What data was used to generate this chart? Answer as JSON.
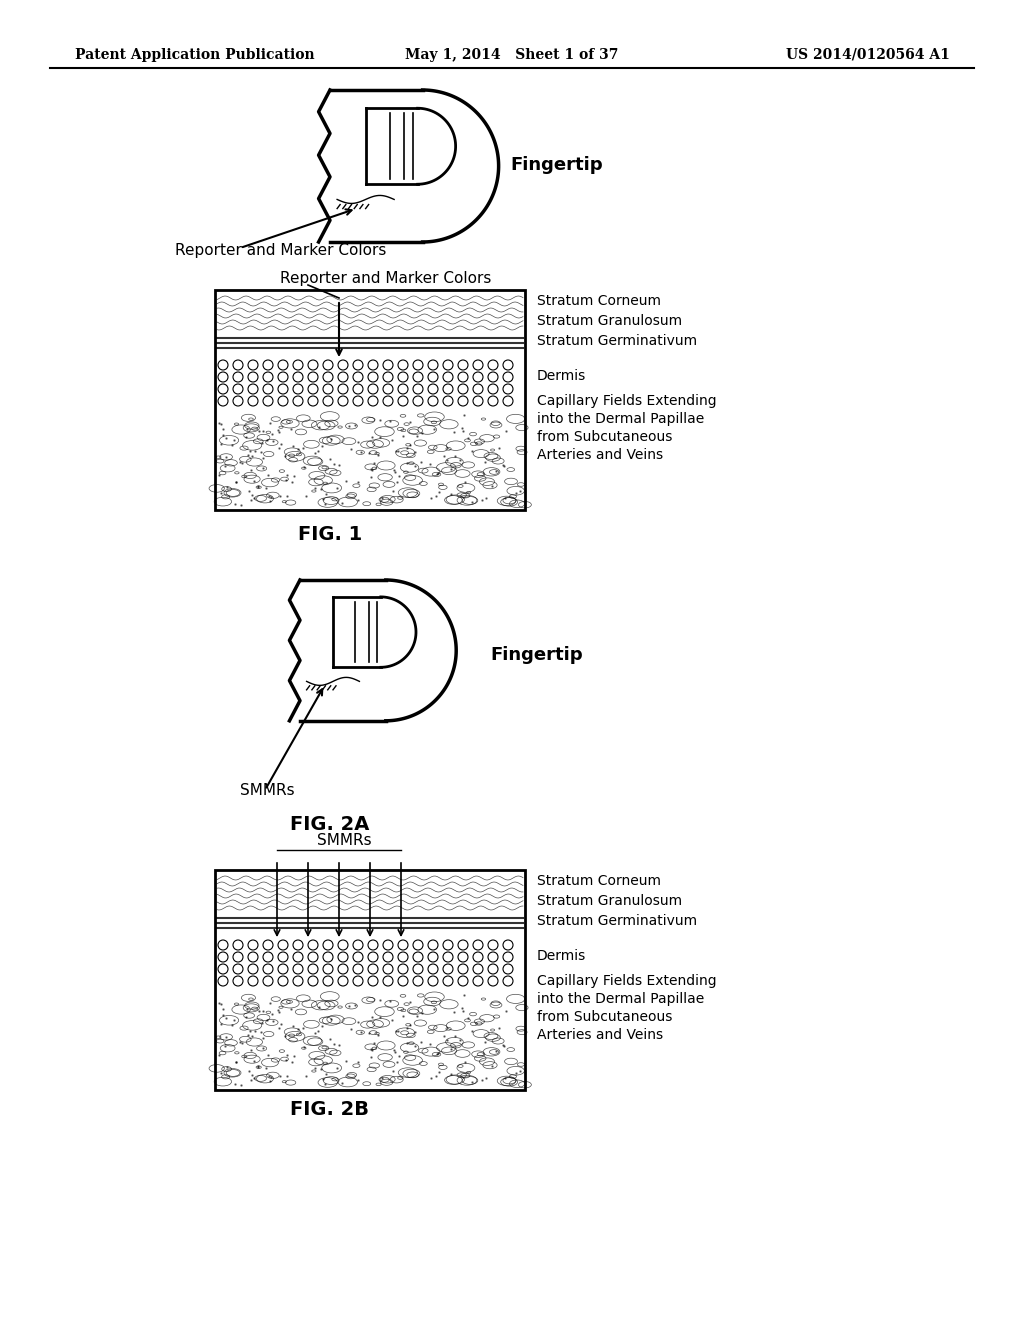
{
  "bg_color": "#ffffff",
  "header_left": "Patent Application Publication",
  "header_center": "May 1, 2014   Sheet 1 of 37",
  "header_right": "US 2014/0120564 A1",
  "fig1_label": "FIG. 1",
  "fig2a_label": "FIG. 2A",
  "fig2b_label": "FIG. 2B",
  "fingertip_label1": "Fingertip",
  "fingertip_label2": "Fingertip",
  "reporter_label1": "Reporter and Marker Colors",
  "reporter_label2": "Reporter and Marker Colors",
  "smmrs_label1": "SMMRs",
  "smmrs_label2": "SMMRs",
  "skin_labels_fig1": [
    "Stratum Corneum",
    "Stratum Granulosum",
    "Stratum Germinativum",
    "",
    "Dermis",
    "Capillary Fields Extending",
    "into the Dermal Papillae",
    "from Subcutaneous",
    "Arteries and Veins"
  ],
  "skin_labels_fig2b": [
    "Stratum Corneum",
    "Stratum Granulosum",
    "Stratum Germinativum",
    "",
    "Dermis",
    "Capillary Fields Extending",
    "into the Dermal Papillae",
    "from Subcutaneous",
    "Arteries and Veins"
  ],
  "text_color": "#000000",
  "line_color": "#000000"
}
